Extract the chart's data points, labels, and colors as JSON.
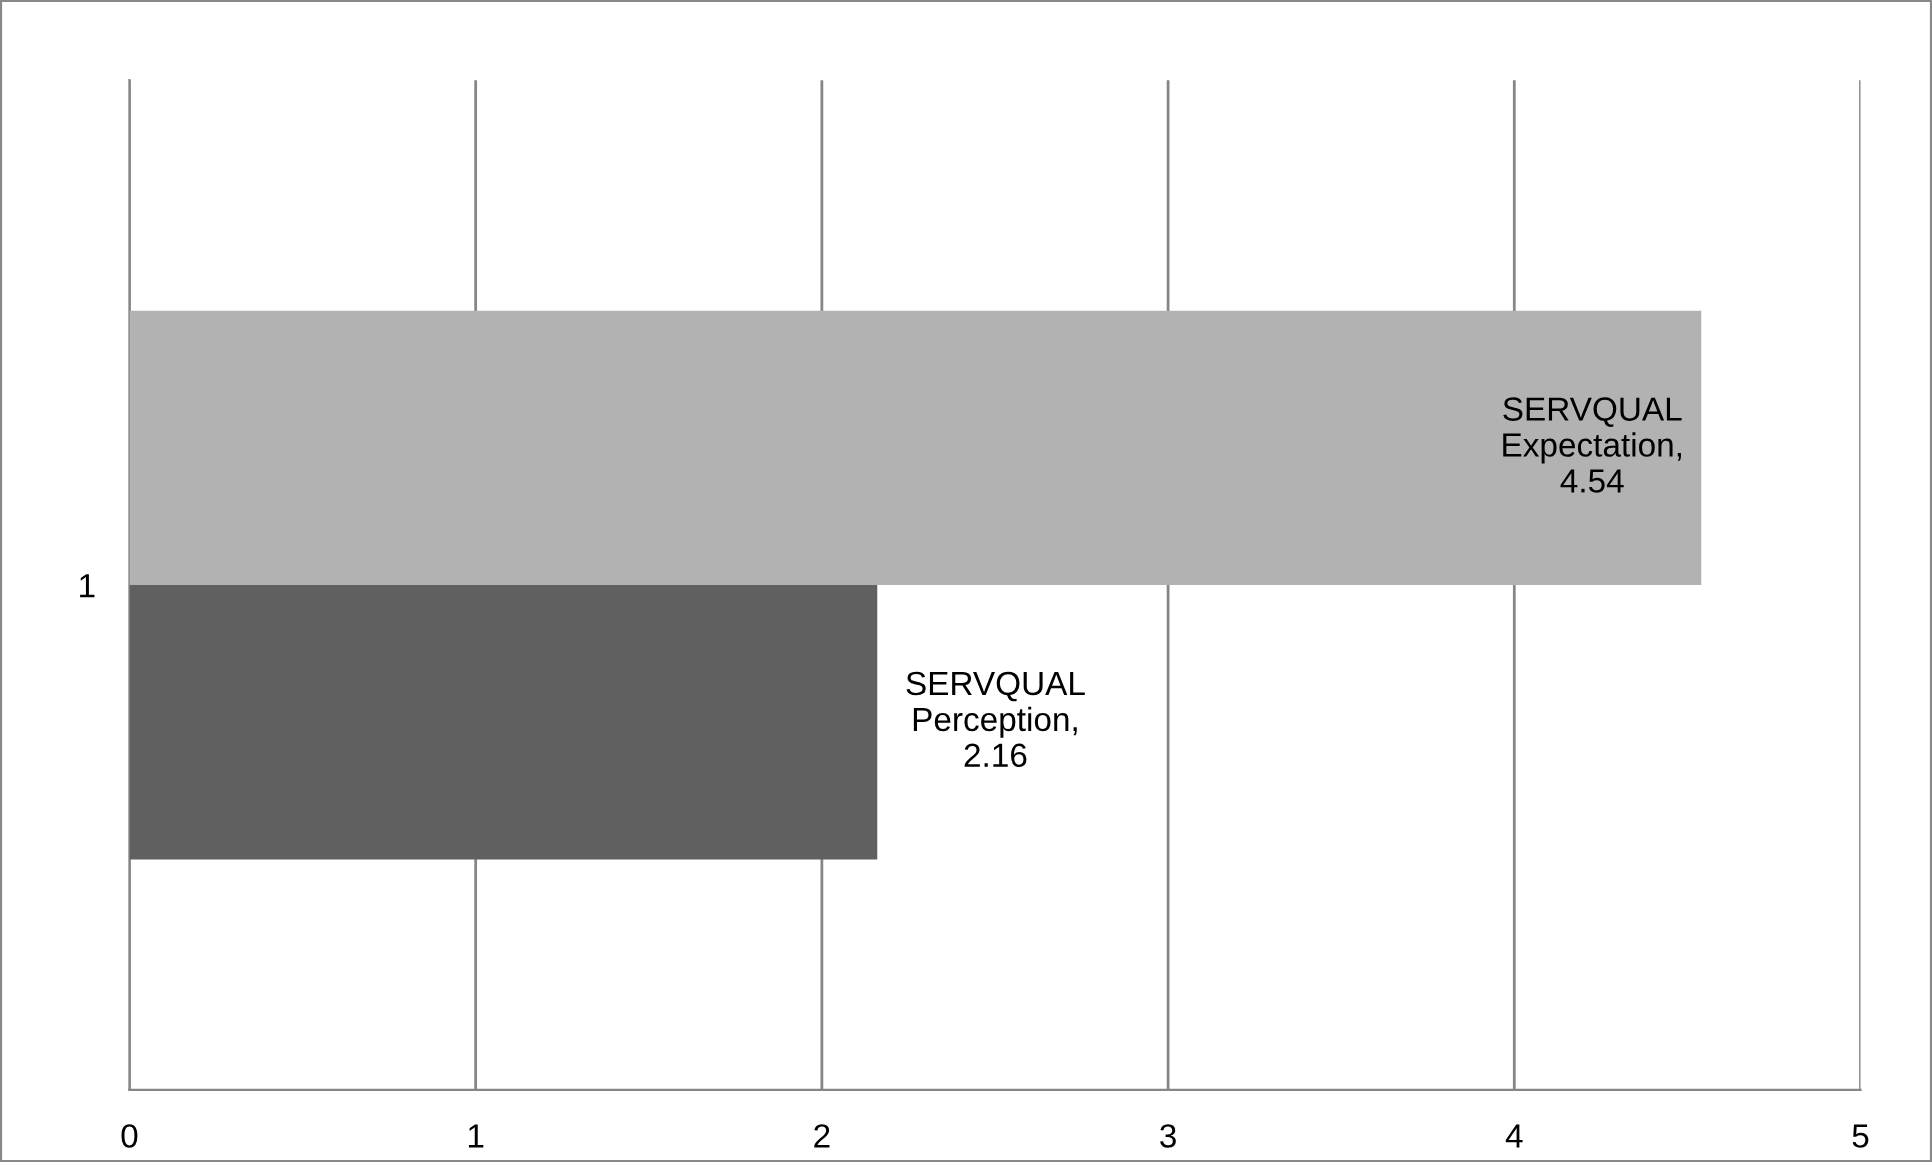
{
  "chart_data": {
    "type": "bar",
    "orientation": "horizontal",
    "categories": [
      "1"
    ],
    "series": [
      {
        "color": "#606060",
        "values": [
          2.16
        ],
        "value_labels": [
          "SERVQUAL\nPerception,\n2.16"
        ]
      },
      {
        "color": "#b2b2b2",
        "values": [
          4.54
        ],
        "value_labels": [
          "SERVQUAL\nExpectation,\n4.54"
        ]
      }
    ],
    "xlim": [
      0,
      5
    ],
    "xticks": [
      0,
      1,
      2,
      3,
      4,
      5
    ],
    "grid": "x",
    "legend": false
  }
}
